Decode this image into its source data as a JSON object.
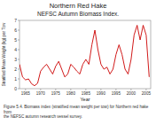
{
  "chart_data": {
    "type": "line",
    "title": "Northern Red Hake",
    "subtitle": "NEFSC Autumn Biomass Index.",
    "x_label": "Year",
    "y_label": "Stratified Mean Weight (kg) per Tow",
    "caption": "Figure 5.4.  Biomass index (stratified mean weight per tow) for Northern red hake from\nthe NEFSC autumn research vessel survey.",
    "color": "#cc0000",
    "x": [
      1963,
      1964,
      1965,
      1966,
      1967,
      1968,
      1969,
      1970,
      1971,
      1972,
      1973,
      1974,
      1975,
      1976,
      1977,
      1978,
      1979,
      1980,
      1981,
      1982,
      1983,
      1984,
      1985,
      1986,
      1987,
      1988,
      1989,
      1990,
      1991,
      1992,
      1993,
      1994,
      1995,
      1996,
      1997,
      1998,
      1999,
      2000,
      2001,
      2002,
      2003,
      2004,
      2005,
      2006
    ],
    "values": [
      2.5,
      1.2,
      0.9,
      1.0,
      0.5,
      0.3,
      0.55,
      1.8,
      2.2,
      2.5,
      2.0,
      1.5,
      2.3,
      2.8,
      2.0,
      1.2,
      1.5,
      2.5,
      2.2,
      1.8,
      1.5,
      2.5,
      3.0,
      2.5,
      4.5,
      6.0,
      4.0,
      2.5,
      2.0,
      2.2,
      1.5,
      2.0,
      3.5,
      4.5,
      3.5,
      2.0,
      1.5,
      3.0,
      5.5,
      6.5,
      5.0,
      6.5,
      5.5,
      1.2
    ],
    "xlim": [
      1963,
      2006.5
    ],
    "ylim": [
      0,
      7
    ],
    "xticks": [
      1965,
      1970,
      1975,
      1980,
      1985,
      1990,
      1995,
      2000,
      2005
    ],
    "yticks": [
      0,
      1,
      2,
      3,
      4,
      5,
      6,
      7
    ],
    "grid": false
  }
}
